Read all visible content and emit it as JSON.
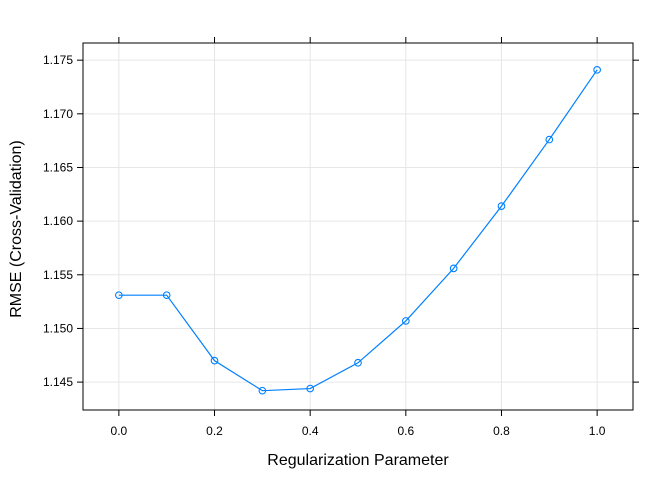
{
  "chart_data": {
    "type": "line",
    "xlabel": "Regularization Parameter",
    "ylabel": "RMSE (Cross-Validation)",
    "xlim": [
      -0.075,
      1.075
    ],
    "ylim": [
      1.1424,
      1.1766
    ],
    "xticks": [
      0.0,
      0.2,
      0.4,
      0.6,
      0.8,
      1.0
    ],
    "xtick_labels": [
      "0.0",
      "0.2",
      "0.4",
      "0.6",
      "0.8",
      "1.0"
    ],
    "xticks_top": [
      0.0,
      0.2,
      0.4,
      0.6,
      0.8,
      1.0
    ],
    "yticks": [
      1.145,
      1.15,
      1.155,
      1.16,
      1.165,
      1.17,
      1.175
    ],
    "ytick_labels": [
      "1.145",
      "1.150",
      "1.155",
      "1.160",
      "1.165",
      "1.170",
      "1.175"
    ],
    "grid": true,
    "series_color": "#0080ff",
    "grid_color": "#e6e6e6",
    "x": [
      0.0,
      0.1,
      0.2,
      0.3,
      0.4,
      0.5,
      0.6,
      0.7,
      0.8,
      0.9,
      1.0
    ],
    "y": [
      1.1531,
      1.1531,
      1.147,
      1.1442,
      1.1444,
      1.1468,
      1.1507,
      1.1556,
      1.1614,
      1.1676,
      1.1741
    ]
  }
}
